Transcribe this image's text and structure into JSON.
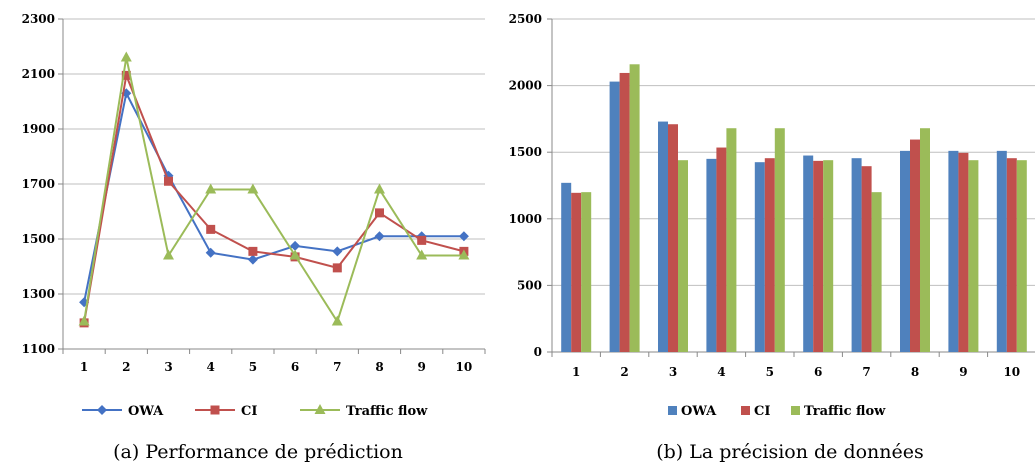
{
  "chart_data": [
    {
      "type": "line",
      "caption": "(a) Performance de prédiction",
      "categories": [
        "1",
        "2",
        "3",
        "4",
        "5",
        "6",
        "7",
        "8",
        "9",
        "10"
      ],
      "y_ticks": [
        "1100",
        "1300",
        "1500",
        "1700",
        "1900",
        "2100",
        "2300"
      ],
      "ylim": [
        1100,
        2300
      ],
      "grid": true,
      "legend_position": "bottom",
      "series": [
        {
          "name": "OWA",
          "color": "#4472C4",
          "marker": "diamond",
          "values": [
            1270,
            2030,
            1730,
            1450,
            1425,
            1475,
            1455,
            1510,
            1510,
            1510
          ]
        },
        {
          "name": "CI",
          "color": "#C0504D",
          "marker": "square",
          "values": [
            1195,
            2095,
            1710,
            1535,
            1455,
            1435,
            1395,
            1595,
            1495,
            1455
          ]
        },
        {
          "name": "Traffic flow",
          "color": "#9BBB59",
          "marker": "triangle",
          "values": [
            1200,
            2160,
            1440,
            1680,
            1680,
            1440,
            1200,
            1680,
            1440,
            1440
          ]
        }
      ]
    },
    {
      "type": "bar",
      "caption": "(b) La précision de données",
      "categories": [
        "1",
        "2",
        "3",
        "4",
        "5",
        "6",
        "7",
        "8",
        "9",
        "10"
      ],
      "y_ticks": [
        "0",
        "500",
        "1000",
        "1500",
        "2000",
        "2500"
      ],
      "ylim": [
        0,
        2500
      ],
      "grid": true,
      "legend_position": "bottom",
      "series": [
        {
          "name": "OWA",
          "color": "#4F81BD",
          "values": [
            1270,
            2030,
            1730,
            1450,
            1425,
            1475,
            1455,
            1510,
            1510,
            1510
          ]
        },
        {
          "name": "CI",
          "color": "#C0504D",
          "values": [
            1195,
            2095,
            1710,
            1535,
            1455,
            1435,
            1395,
            1595,
            1495,
            1455
          ]
        },
        {
          "name": "Traffic flow",
          "color": "#9BBB59",
          "values": [
            1200,
            2160,
            1440,
            1680,
            1680,
            1440,
            1200,
            1680,
            1440,
            1440
          ]
        }
      ]
    }
  ]
}
